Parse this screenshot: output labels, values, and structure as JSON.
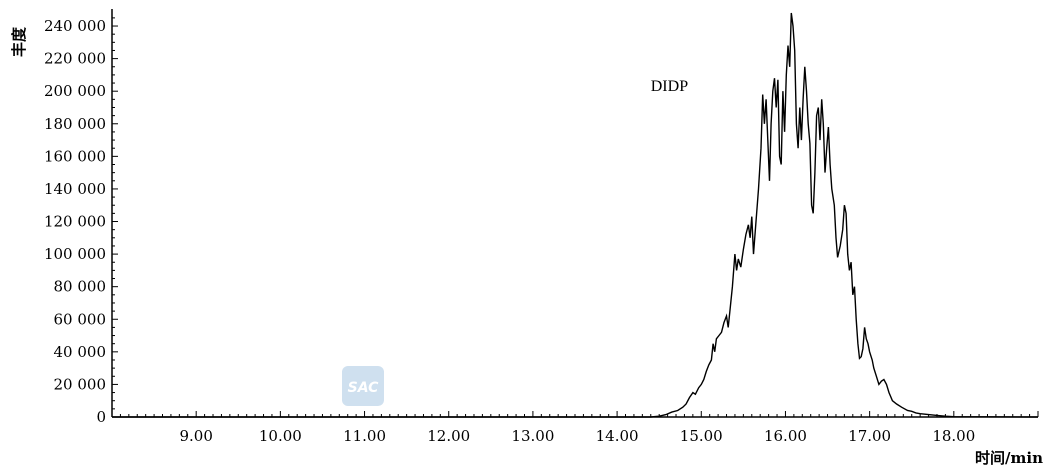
{
  "chart_data": {
    "type": "line",
    "title": "",
    "xlabel": "时间/min",
    "ylabel": "丰度",
    "xlim": [
      8.0,
      19.0
    ],
    "ylim": [
      0,
      248000
    ],
    "x_ticks": [
      "9.00",
      "10.00",
      "11.00",
      "12.00",
      "13.00",
      "14.00",
      "15.00",
      "16.00",
      "17.00",
      "18.00"
    ],
    "x_tick_values": [
      9,
      10,
      11,
      12,
      13,
      14,
      15,
      16,
      17,
      18
    ],
    "y_ticks": [
      "0",
      "20 000",
      "40 000",
      "60 000",
      "80 000",
      "100 000",
      "120 000",
      "140 000",
      "160 000",
      "180 000",
      "200 000",
      "220 000",
      "240 000"
    ],
    "y_tick_values": [
      0,
      20000,
      40000,
      60000,
      80000,
      100000,
      120000,
      140000,
      160000,
      180000,
      200000,
      220000,
      240000
    ],
    "grid": false,
    "legend": "none",
    "annotations": [
      {
        "text": "DIDP",
        "x": 14.4,
        "y": 200000
      }
    ],
    "series": [
      {
        "color": "#000000",
        "points": [
          [
            8.0,
            0
          ],
          [
            14.4,
            0
          ],
          [
            14.5,
            500
          ],
          [
            14.58,
            1500
          ],
          [
            14.65,
            3000
          ],
          [
            14.72,
            4000
          ],
          [
            14.78,
            6000
          ],
          [
            14.82,
            8000
          ],
          [
            14.86,
            12000
          ],
          [
            14.9,
            15000
          ],
          [
            14.93,
            14000
          ],
          [
            14.97,
            18000
          ],
          [
            15.0,
            20000
          ],
          [
            15.03,
            23000
          ],
          [
            15.06,
            28000
          ],
          [
            15.09,
            32000
          ],
          [
            15.12,
            35000
          ],
          [
            15.14,
            45000
          ],
          [
            15.16,
            40000
          ],
          [
            15.18,
            48000
          ],
          [
            15.21,
            50000
          ],
          [
            15.24,
            52000
          ],
          [
            15.27,
            58000
          ],
          [
            15.3,
            62000
          ],
          [
            15.32,
            55000
          ],
          [
            15.34,
            65000
          ],
          [
            15.37,
            80000
          ],
          [
            15.4,
            100000
          ],
          [
            15.42,
            90000
          ],
          [
            15.44,
            97000
          ],
          [
            15.47,
            92000
          ],
          [
            15.5,
            103000
          ],
          [
            15.53,
            112000
          ],
          [
            15.56,
            118000
          ],
          [
            15.58,
            110000
          ],
          [
            15.6,
            123000
          ],
          [
            15.62,
            100000
          ],
          [
            15.65,
            120000
          ],
          [
            15.68,
            140000
          ],
          [
            15.71,
            165000
          ],
          [
            15.73,
            198000
          ],
          [
            15.75,
            180000
          ],
          [
            15.77,
            195000
          ],
          [
            15.79,
            170000
          ],
          [
            15.81,
            145000
          ],
          [
            15.83,
            180000
          ],
          [
            15.85,
            200000
          ],
          [
            15.87,
            208000
          ],
          [
            15.89,
            190000
          ],
          [
            15.91,
            207000
          ],
          [
            15.93,
            160000
          ],
          [
            15.95,
            155000
          ],
          [
            15.97,
            200000
          ],
          [
            15.99,
            175000
          ],
          [
            16.01,
            210000
          ],
          [
            16.03,
            228000
          ],
          [
            16.05,
            215000
          ],
          [
            16.07,
            248000
          ],
          [
            16.09,
            240000
          ],
          [
            16.11,
            225000
          ],
          [
            16.13,
            180000
          ],
          [
            16.15,
            165000
          ],
          [
            16.17,
            190000
          ],
          [
            16.19,
            170000
          ],
          [
            16.21,
            195000
          ],
          [
            16.23,
            215000
          ],
          [
            16.25,
            200000
          ],
          [
            16.27,
            180000
          ],
          [
            16.29,
            168000
          ],
          [
            16.31,
            130000
          ],
          [
            16.33,
            125000
          ],
          [
            16.35,
            150000
          ],
          [
            16.37,
            185000
          ],
          [
            16.39,
            190000
          ],
          [
            16.41,
            170000
          ],
          [
            16.43,
            195000
          ],
          [
            16.45,
            180000
          ],
          [
            16.47,
            150000
          ],
          [
            16.49,
            165000
          ],
          [
            16.51,
            178000
          ],
          [
            16.53,
            155000
          ],
          [
            16.55,
            140000
          ],
          [
            16.58,
            130000
          ],
          [
            16.6,
            110000
          ],
          [
            16.62,
            98000
          ],
          [
            16.65,
            105000
          ],
          [
            16.68,
            115000
          ],
          [
            16.7,
            130000
          ],
          [
            16.72,
            125000
          ],
          [
            16.74,
            100000
          ],
          [
            16.76,
            90000
          ],
          [
            16.78,
            95000
          ],
          [
            16.8,
            75000
          ],
          [
            16.82,
            80000
          ],
          [
            16.84,
            60000
          ],
          [
            16.86,
            45000
          ],
          [
            16.88,
            36000
          ],
          [
            16.9,
            37000
          ],
          [
            16.92,
            42000
          ],
          [
            16.94,
            55000
          ],
          [
            16.96,
            48000
          ],
          [
            16.98,
            45000
          ],
          [
            17.0,
            40000
          ],
          [
            17.03,
            35000
          ],
          [
            17.05,
            30000
          ],
          [
            17.08,
            25000
          ],
          [
            17.11,
            20000
          ],
          [
            17.14,
            22000
          ],
          [
            17.17,
            23000
          ],
          [
            17.2,
            20000
          ],
          [
            17.23,
            15000
          ],
          [
            17.27,
            10000
          ],
          [
            17.32,
            8000
          ],
          [
            17.38,
            6000
          ],
          [
            17.45,
            4000
          ],
          [
            17.5,
            3500
          ],
          [
            17.55,
            2500
          ],
          [
            17.6,
            2000
          ],
          [
            17.7,
            1500
          ],
          [
            17.8,
            1000
          ],
          [
            17.9,
            500
          ],
          [
            18.0,
            200
          ],
          [
            19.0,
            0
          ]
        ]
      }
    ]
  },
  "watermark": {
    "text": "SAC",
    "color": "#cfe0ef"
  }
}
